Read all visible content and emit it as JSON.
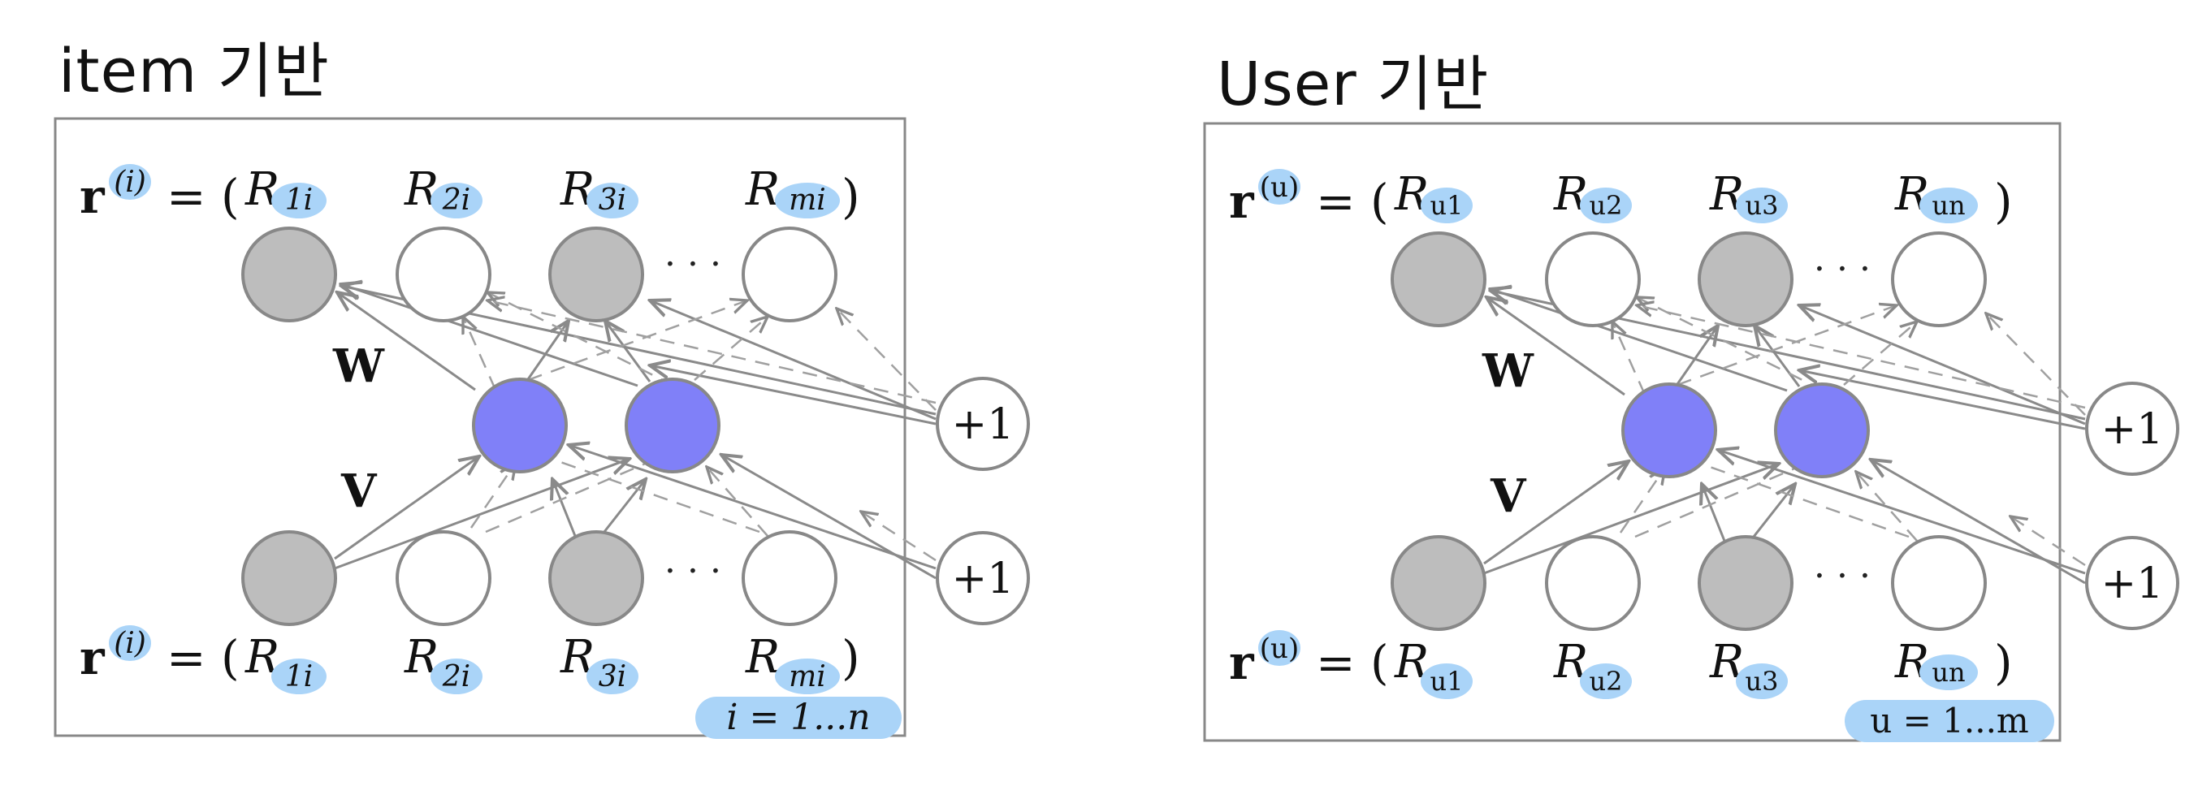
{
  "item_panel": {
    "title": "item 기반",
    "vec_top": "r",
    "vec_sup": "(i)",
    "equals": "=",
    "open_paren": "(",
    "close_paren": ")",
    "R": "R",
    "subs": [
      "1i",
      "2i",
      "3i",
      "mi"
    ],
    "dots": "· · ·",
    "W": "W",
    "V": "V",
    "bias": "+1",
    "range_label": "i = 1...n"
  },
  "user_panel": {
    "title": "User 기반",
    "vec_top": "r",
    "vec_sup": "(u)",
    "equals": "=",
    "open_paren": "(",
    "close_paren": ")",
    "R": "R",
    "subs": [
      "u1",
      "u2",
      "u3",
      "un"
    ],
    "dots": "· · ·",
    "W": "W",
    "V": "V",
    "bias": "+1",
    "range_label": "u = 1...m"
  },
  "colors": {
    "gray_node": "#bdbdbd",
    "white_node": "#ffffff",
    "hidden_node": "#8080f8",
    "highlight": "#aad4f8",
    "edge": "#8a8a8a"
  }
}
